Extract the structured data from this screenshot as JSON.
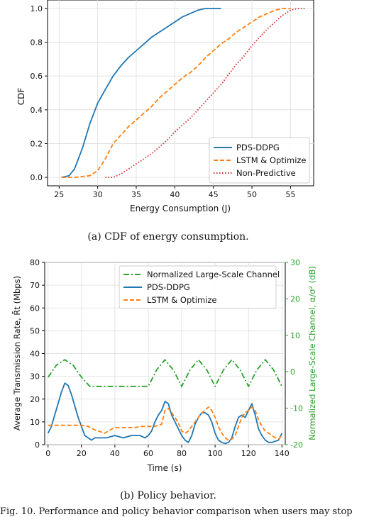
{
  "captions": {
    "a": "(a)  CDF of energy consumption.",
    "b": "(b)  Policy behavior.",
    "figure": "Fig. 10.  Performance and policy behavior comparison when users may stop"
  },
  "chart_data": [
    {
      "type": "line",
      "xlabel": "Energy Consumption (J)",
      "ylabel": "CDF",
      "xlim": [
        23.5,
        58
      ],
      "ylim": [
        -0.05,
        1.05
      ],
      "xticks": [
        25,
        30,
        35,
        40,
        45,
        50,
        55
      ],
      "yticks": [
        0.0,
        0.2,
        0.4,
        0.6,
        0.8,
        1.0
      ],
      "grid": true,
      "legend_position": "lower-right",
      "series": [
        {
          "name": "PDS-DDPG",
          "color": "#1f77b4",
          "style": "solid",
          "x": [
            25.3,
            26.3,
            27,
            28,
            29,
            30,
            31,
            32,
            33,
            34,
            35,
            36,
            37,
            38,
            39,
            40,
            41,
            42,
            43,
            44,
            45,
            46
          ],
          "y": [
            0.0,
            0.01,
            0.05,
            0.17,
            0.32,
            0.44,
            0.52,
            0.6,
            0.66,
            0.71,
            0.75,
            0.79,
            0.83,
            0.86,
            0.89,
            0.92,
            0.95,
            0.97,
            0.99,
            1.0,
            1.0,
            1.0
          ]
        },
        {
          "name": "LSTM & Optimize",
          "color": "#ff7f0e",
          "style": "dashed",
          "x": [
            25.3,
            27,
            29,
            30,
            31,
            32,
            33,
            34,
            35,
            36,
            37,
            38,
            39,
            40,
            41,
            42,
            43,
            44,
            45,
            46,
            47,
            48,
            49,
            50,
            51,
            52,
            53,
            54,
            55
          ],
          "y": [
            0.0,
            0.0,
            0.01,
            0.04,
            0.11,
            0.2,
            0.25,
            0.3,
            0.34,
            0.38,
            0.42,
            0.47,
            0.51,
            0.55,
            0.59,
            0.62,
            0.66,
            0.71,
            0.75,
            0.79,
            0.82,
            0.86,
            0.89,
            0.92,
            0.95,
            0.97,
            0.99,
            1.0,
            1.0
          ]
        },
        {
          "name": "Non-Predictive",
          "color": "#d62728",
          "style": "dotted",
          "x": [
            31,
            32,
            33,
            34,
            35,
            36,
            37,
            38,
            39,
            40,
            41,
            42,
            43,
            44,
            45,
            46,
            47,
            48,
            49,
            50,
            51,
            52,
            53,
            54,
            55,
            56,
            57
          ],
          "y": [
            0.0,
            0.0,
            0.02,
            0.05,
            0.08,
            0.11,
            0.14,
            0.18,
            0.22,
            0.27,
            0.31,
            0.35,
            0.4,
            0.45,
            0.5,
            0.55,
            0.61,
            0.67,
            0.72,
            0.78,
            0.83,
            0.88,
            0.92,
            0.96,
            0.99,
            1.0,
            1.0
          ]
        }
      ]
    },
    {
      "type": "line",
      "xlabel": "Time (s)",
      "ylabel": "Average Transmission Rate, R̄t (Mbps)",
      "y2label": "Normalized Large-Scale Channel, α/σ² (dB)",
      "xlim": [
        -2,
        142
      ],
      "ylim": [
        0,
        80
      ],
      "y2lim": [
        -20,
        30
      ],
      "xticks": [
        0,
        20,
        40,
        60,
        80,
        100,
        120,
        140
      ],
      "yticks": [
        0,
        10,
        20,
        30,
        40,
        50,
        60,
        70,
        80
      ],
      "y2ticks": [
        -20,
        -10,
        0,
        10,
        20,
        30
      ],
      "y2color": "#2ca02c",
      "grid": true,
      "legend_position": "top-right",
      "series": [
        {
          "name": "Normalized Large-Scale Channel",
          "color": "#2ca02c",
          "style": "dashdot",
          "axis": "right",
          "x": [
            0,
            5,
            10,
            15,
            20,
            25,
            30,
            40,
            50,
            60,
            65,
            70,
            75,
            80,
            85,
            90,
            95,
            100,
            105,
            110,
            115,
            120,
            125,
            130,
            135,
            140
          ],
          "y": [
            -1.5,
            1.8,
            3.3,
            1.8,
            -1.5,
            -4,
            -4,
            -4,
            -4,
            -4,
            0.5,
            3.3,
            0.5,
            -4,
            0.5,
            3.3,
            0.5,
            -4,
            0.5,
            3.3,
            0.5,
            -4,
            0.5,
            3.3,
            0.5,
            -4
          ]
        },
        {
          "name": "PDS-DDPG",
          "color": "#1f77b4",
          "style": "solid",
          "axis": "left",
          "x": [
            0,
            2,
            4,
            6,
            8,
            10,
            12,
            14,
            16,
            18,
            20,
            22,
            24,
            26,
            28,
            30,
            35,
            40,
            45,
            50,
            55,
            58,
            60,
            62,
            64,
            66,
            68,
            70,
            72,
            74,
            76,
            78,
            80,
            82,
            84,
            86,
            88,
            90,
            92,
            94,
            96,
            98,
            100,
            102,
            104,
            106,
            108,
            110,
            112,
            114,
            116,
            118,
            120,
            122,
            124,
            126,
            128,
            130,
            132,
            134,
            136,
            138,
            140
          ],
          "y": [
            5,
            8,
            13,
            18,
            23,
            27,
            26,
            22,
            17,
            12,
            8,
            4,
            3,
            2,
            3,
            3,
            3,
            4,
            3,
            4,
            4,
            3,
            4,
            6,
            10,
            13,
            15,
            19,
            18,
            13,
            10,
            7,
            4,
            2,
            1,
            4,
            9,
            12,
            14,
            14,
            13,
            10,
            5,
            2,
            1,
            0.5,
            1,
            3,
            8,
            12,
            13,
            12,
            15,
            18,
            13,
            7,
            4,
            2,
            1,
            1,
            1.5,
            2,
            5
          ]
        },
        {
          "name": "LSTM & Optimize",
          "color": "#ff7f0e",
          "style": "dashed",
          "axis": "left",
          "x": [
            0,
            4,
            8,
            12,
            16,
            20,
            24,
            28,
            32,
            34,
            36,
            40,
            44,
            48,
            52,
            56,
            60,
            64,
            66,
            68,
            70,
            72,
            74,
            76,
            78,
            80,
            82,
            84,
            86,
            88,
            90,
            92,
            94,
            96,
            98,
            100,
            102,
            104,
            106,
            108,
            110,
            112,
            114,
            116,
            118,
            120,
            122,
            124,
            126,
            128,
            130,
            132,
            134,
            136,
            138,
            140
          ],
          "y": [
            8.5,
            8.5,
            8.5,
            8.5,
            8.5,
            8.5,
            8,
            6.5,
            5.5,
            5,
            6,
            7.5,
            7.5,
            7.5,
            7.5,
            8,
            8,
            8,
            8.5,
            9,
            15,
            16,
            14,
            12,
            9.5,
            6,
            5,
            6,
            8,
            10,
            12,
            14,
            15,
            16.5,
            15,
            12,
            8,
            5,
            3,
            2,
            2.5,
            4,
            8,
            12,
            14,
            15,
            16.5,
            15,
            11,
            8,
            6,
            5,
            4,
            3,
            2.5,
            4
          ]
        }
      ]
    }
  ]
}
